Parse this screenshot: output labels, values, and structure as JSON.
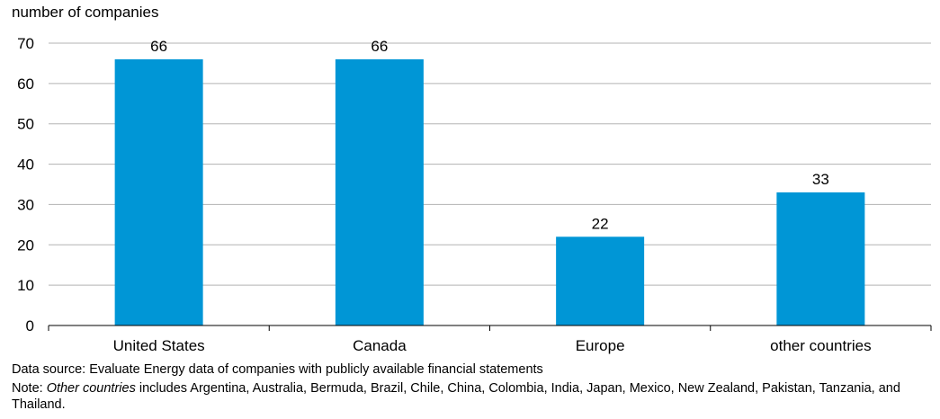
{
  "chart_data": {
    "type": "bar",
    "ylabel": "number of companies",
    "xlabel": "",
    "categories": [
      "United States",
      "Canada",
      "Europe",
      "other countries"
    ],
    "values": [
      66,
      66,
      22,
      33
    ],
    "data_labels": [
      "66",
      "66",
      "22",
      "33"
    ],
    "ylim": [
      0,
      70
    ],
    "yticks": [
      0,
      10,
      20,
      30,
      40,
      50,
      60,
      70
    ],
    "grid": true,
    "bar_color": "#0096d6",
    "grid_color": "#b3b3b3"
  },
  "footnotes": {
    "source": "Data source: Evaluate Energy data of companies with publicly available financial statements",
    "note_label": "Note: ",
    "note_italic": "Other countries",
    "note_rest": " includes Argentina, Australia, Bermuda, Brazil, Chile, China, Colombia, India, Japan, Mexico, New Zealand, Pakistan, Tanzania, and Thailand."
  }
}
